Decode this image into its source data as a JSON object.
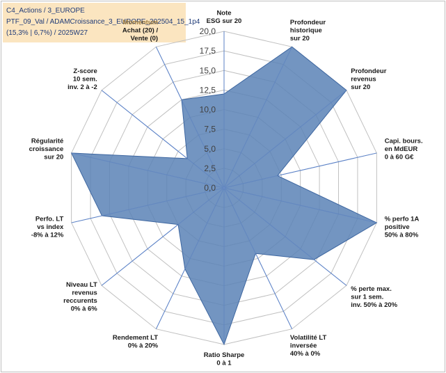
{
  "header": {
    "line1": "C4_Actions / 3_EUROPE",
    "line2": "PTF_09_Val / ADAMCroissance_3_EUROPE_202504_15_1p4",
    "line3": "(15,3% | 6,7%) / 2025W27"
  },
  "colors": {
    "fill": "#5b82b6",
    "stroke": "#3d66a0",
    "grid": "#c0c0c0",
    "spoke": "#4472c4",
    "header_bg": "#fbe5c0",
    "momentum": "#9c7a3c"
  },
  "chart_data": {
    "type": "radar",
    "rmax": 20,
    "ticks": [
      "0,0",
      "2,5",
      "5,0",
      "7,5",
      "10,0",
      "12,5",
      "15,0",
      "17,5",
      "20,0"
    ],
    "axes": [
      {
        "lines": [
          "Note",
          "ESG sur 20"
        ],
        "value": 12
      },
      {
        "lines": [
          "Profondeur",
          "historique",
          "sur 20"
        ],
        "value": 20
      },
      {
        "lines": [
          "Profondeur",
          "revenus",
          "sur 20"
        ],
        "value": 20
      },
      {
        "lines": [
          "Capi. bours.",
          "en MdEUR",
          "0 à 60 G€"
        ],
        "value": 7
      },
      {
        "lines": [
          "% perfo 1A",
          "positive",
          "50% à 80%"
        ],
        "value": 20
      },
      {
        "lines": [
          "% perte max.",
          "sur 1 sem.",
          "inv. 50% à 20%"
        ],
        "value": 14.7
      },
      {
        "lines": [
          "Volatilité LT",
          "inversée",
          "40% à 0%"
        ],
        "value": 9.3
      },
      {
        "lines": [
          "Ratio Sharpe",
          "0 à 1"
        ],
        "value": 20
      },
      {
        "lines": [
          "Rendement LT",
          "0% à 20%"
        ],
        "value": 11.5
      },
      {
        "lines": [
          "Niveau LT",
          "revenus",
          "reccurents",
          "0% à 6%"
        ],
        "value": 7.5
      },
      {
        "lines": [
          "Perfo. LT",
          "vs index",
          "-8% à 12%"
        ],
        "value": 16
      },
      {
        "lines": [
          "Régularité",
          "croissance",
          "sur 20"
        ],
        "value": 20
      },
      {
        "lines": [
          "Z-score",
          "10 sem.",
          "inv. 2 à -2"
        ],
        "value": 6
      },
      {
        "lines": [
          "Momentum",
          "Achat (20) /",
          "Vente (0)"
        ],
        "value": 12.5
      }
    ]
  }
}
